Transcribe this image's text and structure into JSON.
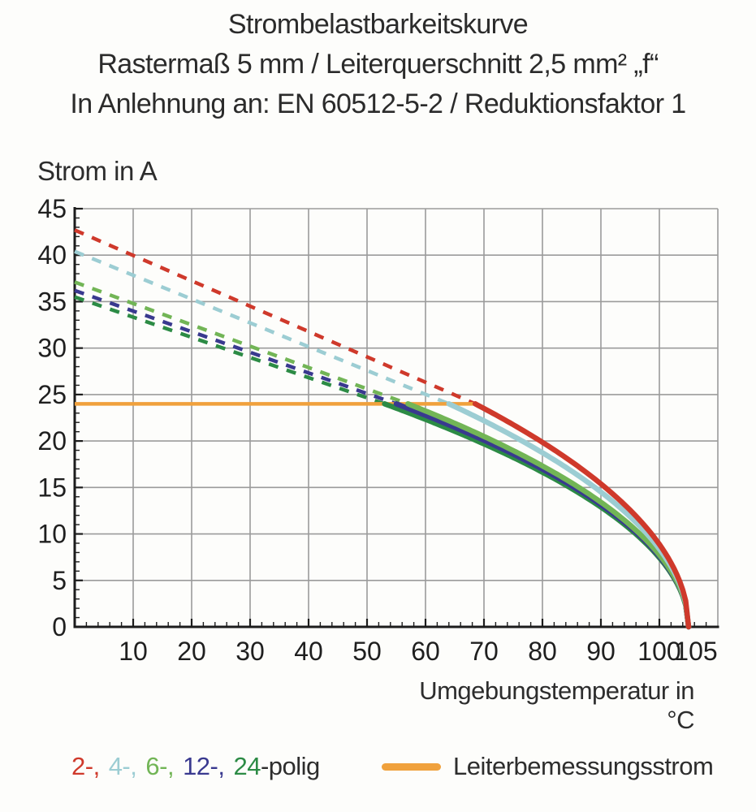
{
  "header": {
    "line1": "Strombelastbarkeitskurve",
    "line2": "Rastermaß 5 mm / Leiterquerschnitt 2,5 mm² „f“",
    "line3": "In Anlehnung an: EN 60512-5-2 / Reduktionsfaktor 1"
  },
  "chart_data": {
    "type": "line",
    "title": "Strombelastbarkeitskurve",
    "xlabel": "Umgebungstemperatur in °C",
    "ylabel": "Strom in A",
    "xlim": [
      0,
      110
    ],
    "ylim": [
      0,
      45
    ],
    "x_major_ticks": [
      10,
      20,
      30,
      40,
      50,
      60,
      70,
      80,
      90,
      100,
      105
    ],
    "x_minor_step": 2,
    "y_major_ticks": [
      0,
      5,
      10,
      15,
      20,
      25,
      30,
      35,
      40,
      45
    ],
    "y_minor_step": 1,
    "grid": "on",
    "grid_color": "#9b9b9b",
    "axis_color": "#1c1c1c",
    "rated_line": {
      "label": "Leiterbemessungsstrom",
      "color": "#f0a13c",
      "current_A": 24,
      "x_start_C": 0,
      "x_end_C": 68.5
    },
    "curve_model": {
      "type": "sqrt-derating",
      "exponent": 0.5,
      "zero_at_C": 105
    },
    "series": [
      {
        "name": "2-polig",
        "poles": 2,
        "color": "#cf392b",
        "style": "dashed above 24 A, solid below",
        "current_at_0C_A": 42.7,
        "meets_rated_24A_at_C": 68.5,
        "zero_at_C": 105,
        "points": [
          [
            0,
            42.7
          ],
          [
            10,
            40.0
          ],
          [
            20,
            37.2
          ],
          [
            30,
            34.5
          ],
          [
            40,
            31.8
          ],
          [
            50,
            29.0
          ],
          [
            60,
            26.3
          ],
          [
            68.5,
            24.0
          ],
          [
            80,
            19.9
          ],
          [
            90,
            15.4
          ],
          [
            100,
            8.9
          ],
          [
            105,
            0
          ]
        ]
      },
      {
        "name": "4-polig",
        "poles": 4,
        "color": "#9ccdd3",
        "style": "dashed above 24 A, solid below",
        "current_at_0C_A": 40.4,
        "meets_rated_24A_at_C": 64,
        "zero_at_C": 105,
        "points": [
          [
            0,
            40.4
          ],
          [
            10,
            37.8
          ],
          [
            20,
            35.3
          ],
          [
            30,
            32.7
          ],
          [
            40,
            30.1
          ],
          [
            50,
            27.6
          ],
          [
            60,
            25.0
          ],
          [
            64,
            24.0
          ],
          [
            80,
            18.7
          ],
          [
            90,
            14.5
          ],
          [
            100,
            8.4
          ],
          [
            105,
            0
          ]
        ]
      },
      {
        "name": "6-polig",
        "poles": 6,
        "color": "#72b556",
        "style": "dashed above 24 A, solid below",
        "current_at_0C_A": 37.1,
        "meets_rated_24A_at_C": 57,
        "zero_at_C": 105,
        "points": [
          [
            0,
            37.1
          ],
          [
            10,
            34.8
          ],
          [
            20,
            32.5
          ],
          [
            30,
            30.2
          ],
          [
            40,
            27.9
          ],
          [
            50,
            25.6
          ],
          [
            57,
            24.0
          ],
          [
            70,
            20.5
          ],
          [
            80,
            17.3
          ],
          [
            90,
            13.4
          ],
          [
            100,
            7.7
          ],
          [
            105,
            0
          ]
        ]
      },
      {
        "name": "12-polig",
        "poles": 12,
        "color": "#39398f",
        "style": "dashed above 24 A, solid below",
        "current_at_0C_A": 36.2,
        "meets_rated_24A_at_C": 55,
        "zero_at_C": 105,
        "points": [
          [
            0,
            36.2
          ],
          [
            10,
            34.0
          ],
          [
            20,
            31.8
          ],
          [
            30,
            29.5
          ],
          [
            40,
            27.3
          ],
          [
            50,
            25.1
          ],
          [
            55,
            24.0
          ],
          [
            70,
            20.1
          ],
          [
            80,
            17.0
          ],
          [
            90,
            13.1
          ],
          [
            100,
            7.6
          ],
          [
            105,
            0
          ]
        ]
      },
      {
        "name": "24-polig",
        "poles": 24,
        "color": "#2c8b45",
        "style": "dashed above 24 A, solid below",
        "current_at_0C_A": 35.5,
        "meets_rated_24A_at_C": 53,
        "zero_at_C": 105,
        "points": [
          [
            0,
            35.5
          ],
          [
            10,
            33.3
          ],
          [
            20,
            31.2
          ],
          [
            30,
            29.0
          ],
          [
            40,
            26.8
          ],
          [
            50,
            24.7
          ],
          [
            53,
            24.0
          ],
          [
            70,
            19.7
          ],
          [
            80,
            16.6
          ],
          [
            90,
            12.9
          ],
          [
            100,
            7.4
          ],
          [
            105,
            0
          ]
        ]
      }
    ]
  },
  "legend": {
    "poles_parts": [
      {
        "text": "2-,",
        "color": "#cf392b"
      },
      {
        "text": "4-,",
        "color": "#9ccdd3"
      },
      {
        "text": "6-,",
        "color": "#72b556"
      },
      {
        "text": "12-,",
        "color": "#39398f"
      },
      {
        "text": "24",
        "color": "#2c8b45"
      },
      {
        "text": "-polig",
        "color": "#2d2d2d"
      }
    ],
    "rated_label": "Leiterbemessungsstrom"
  }
}
